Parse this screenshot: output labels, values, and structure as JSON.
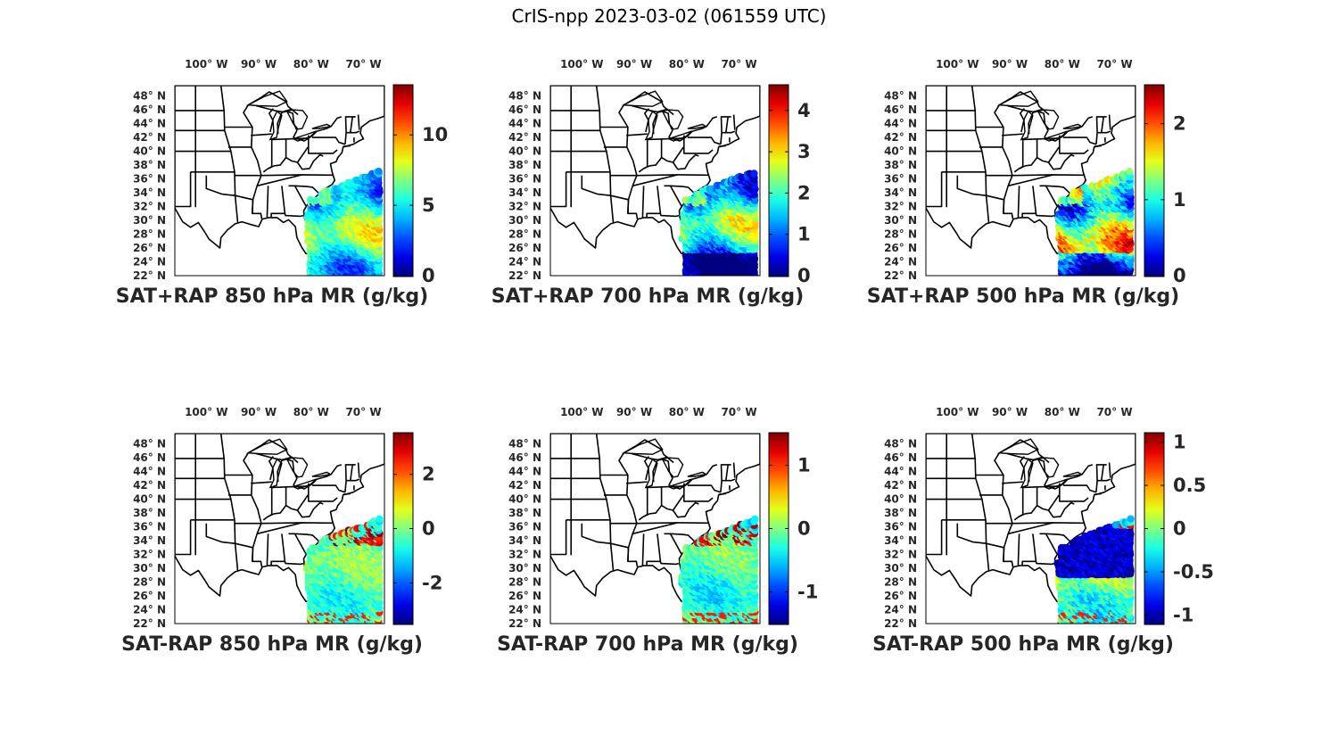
{
  "title": "CrIS-npp 2023-03-02 (061559 UTC)",
  "lon_ticks": [
    "100° W",
    "90° W",
    "80° W",
    "70° W"
  ],
  "lat_ticks": [
    "48° N",
    "46° N",
    "44° N",
    "42° N",
    "40° N",
    "38° N",
    "36° N",
    "34° N",
    "32° N",
    "30° N",
    "28° N",
    "26° N",
    "24° N",
    "22° N"
  ],
  "colormap": "jet",
  "chart_data": [
    {
      "type": "heatmap",
      "title": "SAT+RAP 850 hPa MR (g/kg)",
      "clim": [
        0,
        13.5
      ],
      "cb_ticks": [
        0,
        5,
        10
      ],
      "cb_labels": [
        "0",
        "5",
        "10"
      ],
      "mode": "total",
      "mean": 5.5,
      "amp": 3.5,
      "seed": 11
    },
    {
      "type": "heatmap",
      "title": "SAT+RAP 700 hPa MR (g/kg)",
      "clim": [
        0,
        4.6
      ],
      "cb_ticks": [
        0,
        1,
        2,
        3,
        4
      ],
      "cb_labels": [
        "0",
        "1",
        "2",
        "3",
        "4"
      ],
      "mode": "total",
      "mean": 1.6,
      "amp": 1.4,
      "seed": 23
    },
    {
      "type": "heatmap",
      "title": "SAT+RAP 500 hPa MR (g/kg)",
      "clim": [
        0,
        2.5
      ],
      "cb_ticks": [
        0,
        1,
        2
      ],
      "cb_labels": [
        "0",
        "1",
        "2"
      ],
      "mode": "total",
      "mean": 1.2,
      "amp": 1.0,
      "seed": 37
    },
    {
      "type": "heatmap",
      "title": "SAT-RAP 850 hPa MR (g/kg)",
      "clim": [
        -3.5,
        3.5
      ],
      "cb_ticks": [
        -2,
        0,
        2
      ],
      "cb_labels": [
        "-2",
        "0",
        "2"
      ],
      "mode": "diff",
      "mean": -0.3,
      "amp": 1.3,
      "seed": 41
    },
    {
      "type": "heatmap",
      "title": "SAT-RAP 700 hPa MR (g/kg)",
      "clim": [
        -1.5,
        1.5
      ],
      "cb_ticks": [
        -1,
        0,
        1
      ],
      "cb_labels": [
        "-1",
        "0",
        "1"
      ],
      "mode": "diff",
      "mean": -0.2,
      "amp": 0.6,
      "seed": 53
    },
    {
      "type": "heatmap",
      "title": "SAT-RAP 500 hPa MR (g/kg)",
      "clim": [
        -1.1,
        1.1
      ],
      "cb_ticks": [
        -1,
        -0.5,
        0,
        0.5,
        1
      ],
      "cb_labels": [
        "-1",
        "-0.5",
        "0",
        "0.5",
        "1"
      ],
      "mode": "diff",
      "mean": -0.1,
      "amp": 0.55,
      "seed": 67
    }
  ]
}
